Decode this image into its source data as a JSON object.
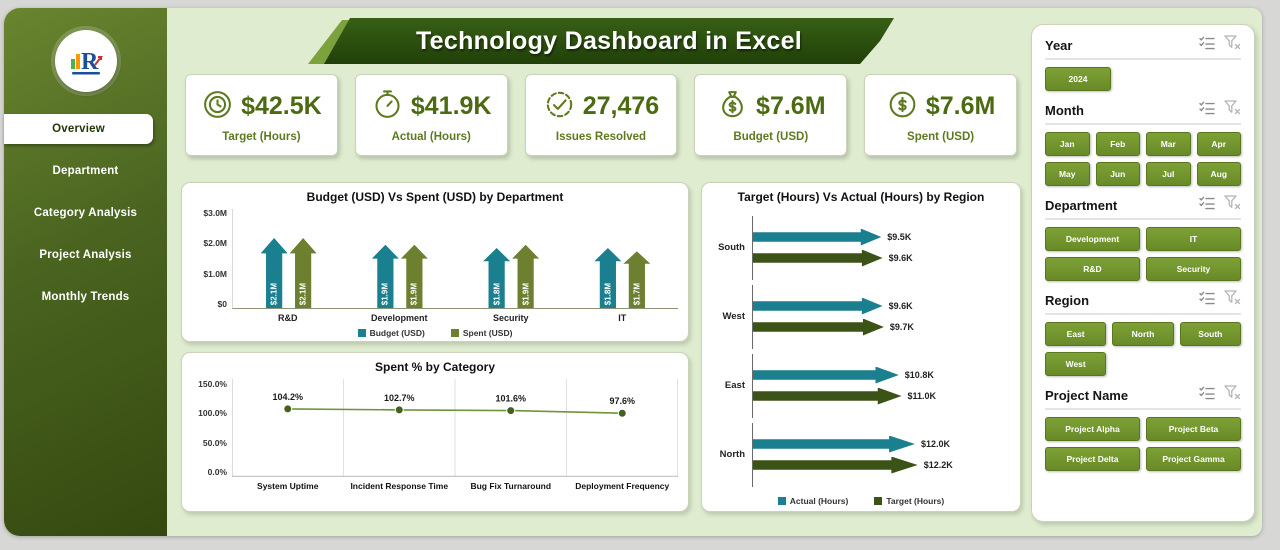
{
  "header": {
    "title": "Technology Dashboard in Excel"
  },
  "sidebar": {
    "items": [
      {
        "label": "Overview",
        "active": true
      },
      {
        "label": "Department",
        "active": false
      },
      {
        "label": "Category Analysis",
        "active": false
      },
      {
        "label": "Project Analysis",
        "active": false
      },
      {
        "label": "Monthly Trends",
        "active": false
      }
    ]
  },
  "kpis": [
    {
      "value": "$42.5K",
      "label": "Target (Hours)",
      "icon": "clock-icon"
    },
    {
      "value": "$41.9K",
      "label": "Actual (Hours)",
      "icon": "stopwatch-icon"
    },
    {
      "value": "27,476",
      "label": "Issues Resolved",
      "icon": "gear-check-icon"
    },
    {
      "value": "$7.6M",
      "label": "Budget (USD)",
      "icon": "money-bag-icon"
    },
    {
      "value": "$7.6M",
      "label": "Spent (USD)",
      "icon": "dollar-coin-icon"
    }
  ],
  "chart_data": [
    {
      "type": "bar",
      "title": "Budget (USD) Vs Spent (USD) by Department",
      "categories": [
        "R&D",
        "Development",
        "Security",
        "IT"
      ],
      "series": [
        {
          "name": "Budget (USD)",
          "color": "#1a7f8e",
          "values": [
            2.1,
            1.9,
            1.8,
            1.8
          ],
          "labels": [
            "$2.1M",
            "$1.9M",
            "$1.8M",
            "$1.8M"
          ]
        },
        {
          "name": "Spent (USD)",
          "color": "#6d8030",
          "values": [
            2.1,
            1.9,
            1.9,
            1.7
          ],
          "labels": [
            "$2.1M",
            "$1.9M",
            "$1.9M",
            "$1.7M"
          ]
        }
      ],
      "ymax": 3,
      "yticks": [
        "$3.0M",
        "$2.0M",
        "$1.0M",
        "$0"
      ],
      "legend_position": "bottom"
    },
    {
      "type": "line",
      "title": "Spent % by Category",
      "categories": [
        "System Uptime",
        "Incident Response Time",
        "Bug Fix Turnaround",
        "Deployment Frequency"
      ],
      "values": [
        104.2,
        102.7,
        101.6,
        97.6
      ],
      "labels": [
        "104.2%",
        "102.7%",
        "101.6%",
        "97.6%"
      ],
      "ylim": [
        0,
        150
      ],
      "yticks": [
        "150.0%",
        "100.0%",
        "50.0%",
        "0.0%"
      ],
      "line_color": "#71943b",
      "point_color": "#44611d",
      "grid": true
    },
    {
      "type": "bar-horizontal",
      "title": "Target (Hours) Vs Actual (Hours) by Region",
      "categories": [
        "South",
        "West",
        "East",
        "North"
      ],
      "series": [
        {
          "name": "Actual (Hours)",
          "color": "#1a7f8e",
          "values": [
            9.5,
            9.6,
            10.8,
            12.0
          ],
          "labels": [
            "$9.5K",
            "$9.6K",
            "$10.8K",
            "$12.0K"
          ]
        },
        {
          "name": "Target (Hours)",
          "color": "#3c5317",
          "values": [
            9.6,
            9.7,
            11.0,
            12.2
          ],
          "labels": [
            "$9.6K",
            "$9.7K",
            "$11.0K",
            "$12.2K"
          ]
        }
      ],
      "xmax": 12.2,
      "legend_position": "bottom"
    }
  ],
  "filters": {
    "sections": [
      {
        "title": "Year",
        "layout": "year",
        "options": [
          "2024"
        ]
      },
      {
        "title": "Month",
        "layout": "month",
        "options": [
          "Jan",
          "Feb",
          "Mar",
          "Apr",
          "May",
          "Jun",
          "Jul",
          "Aug"
        ]
      },
      {
        "title": "Department",
        "layout": "two-col",
        "options": [
          "Development",
          "IT",
          "R&D",
          "Security"
        ]
      },
      {
        "title": "Region",
        "layout": "three-col",
        "options": [
          "East",
          "North",
          "South",
          "West"
        ]
      },
      {
        "title": "Project Name",
        "layout": "two-col",
        "options": [
          "Project Alpha",
          "Project Beta",
          "Project Delta",
          "Project Gamma"
        ]
      }
    ]
  },
  "colors": {
    "sidebar_dark": "#3c5316",
    "button_olive": "#72922f",
    "teal": "#1a7f8e",
    "main_bg": "#dfeccf",
    "kpi_text": "#4c6a12"
  }
}
